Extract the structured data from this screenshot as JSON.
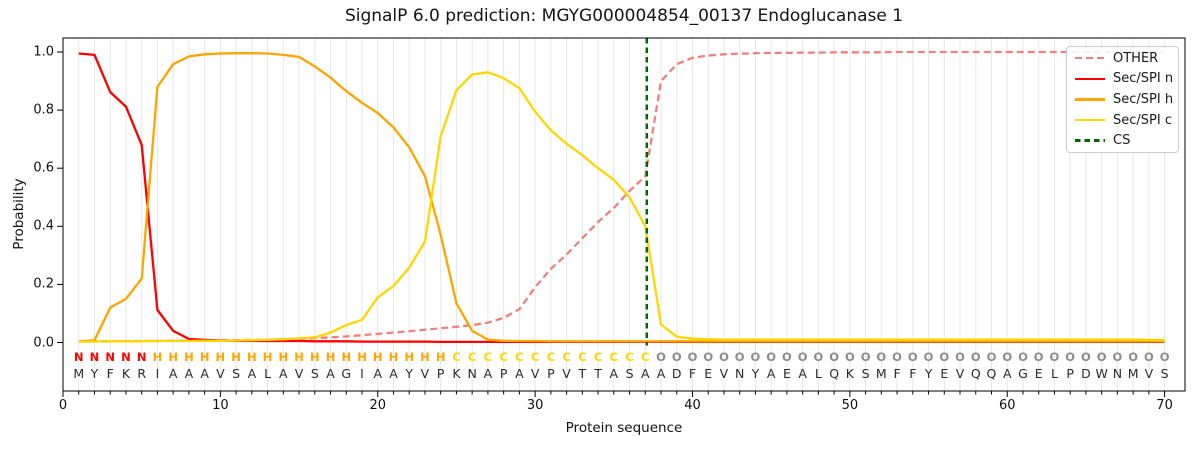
{
  "title": "SignalP 6.0 prediction: MGYG000004854_00137 Endoglucanase 1",
  "axes": {
    "x_label": "Protein sequence",
    "y_label": "Probability",
    "x_ticks": [
      0,
      10,
      20,
      30,
      40,
      50,
      60,
      70
    ],
    "y_ticks": [
      "0.0",
      "0.2",
      "0.4",
      "0.6",
      "0.8",
      "1.0"
    ],
    "xlim": [
      0,
      71.3
    ],
    "ylim": [
      -0.17,
      1.05
    ],
    "grid": "vertical-per-residue"
  },
  "legend": {
    "position": "upper right",
    "items": [
      {
        "label": "OTHER",
        "color": "#f08080",
        "dash": [
          7,
          4
        ]
      },
      {
        "label": "Sec/SPI n",
        "color": "#ff0000",
        "dash": null
      },
      {
        "label": "Sec/SPI h",
        "color": "#ffa500",
        "dash": null
      },
      {
        "label": "Sec/SPI c",
        "color": "#ffd700",
        "dash": null
      },
      {
        "label": "CS",
        "color": "#006400",
        "dash": [
          5.5,
          4
        ]
      }
    ]
  },
  "chart_data": {
    "type": "line",
    "x": [
      1,
      2,
      3,
      4,
      5,
      6,
      7,
      8,
      9,
      10,
      11,
      12,
      13,
      14,
      15,
      16,
      17,
      18,
      19,
      20,
      21,
      22,
      23,
      24,
      25,
      26,
      27,
      28,
      29,
      30,
      31,
      32,
      33,
      34,
      35,
      36,
      37,
      38,
      39,
      40,
      41,
      42,
      43,
      44,
      45,
      46,
      47,
      48,
      49,
      50,
      51,
      52,
      53,
      54,
      55,
      56,
      57,
      58,
      59,
      60,
      61,
      62,
      63,
      64,
      65,
      66,
      67,
      68,
      69,
      70
    ],
    "series": [
      {
        "name": "OTHER",
        "color": "#f08080",
        "dash": [
          7,
          4
        ],
        "values": [
          0.004,
          0.004,
          0.004,
          0.005,
          0.005,
          0.005,
          0.006,
          0.006,
          0.007,
          0.008,
          0.008,
          0.009,
          0.01,
          0.011,
          0.013,
          0.015,
          0.018,
          0.021,
          0.025,
          0.03,
          0.034,
          0.039,
          0.044,
          0.049,
          0.054,
          0.06,
          0.068,
          0.085,
          0.115,
          0.19,
          0.253,
          0.303,
          0.359,
          0.415,
          0.463,
          0.522,
          0.572,
          0.9,
          0.958,
          0.98,
          0.988,
          0.992,
          0.994,
          0.996,
          0.997,
          0.997,
          0.998,
          0.998,
          0.999,
          0.999,
          0.999,
          0.999,
          1.0,
          1.0,
          1.0,
          1.0,
          1.0,
          1.0,
          1.0,
          1.0,
          1.0,
          1.0,
          1.0,
          1.0,
          1.0,
          1.0,
          1.0,
          1.0,
          1.0,
          1.0
        ]
      },
      {
        "name": "Sec/SPI n",
        "color": "#ff0000",
        "dash": null,
        "values": [
          0.995,
          0.99,
          0.862,
          0.812,
          0.68,
          0.112,
          0.04,
          0.012,
          0.009,
          0.007,
          0.006,
          0.006,
          0.005,
          0.005,
          0.005,
          0.004,
          0.004,
          0.004,
          0.003,
          0.003,
          0.003,
          0.003,
          0.003,
          0.002,
          0.002,
          0.002,
          0.002,
          0.002,
          0.002,
          0.002,
          0.002,
          0.002,
          0.002,
          0.002,
          0.002,
          0.002,
          0.002,
          0.002,
          0.002,
          0.002,
          0.002,
          0.002,
          0.002,
          0.002,
          0.002,
          0.002,
          0.002,
          0.002,
          0.002,
          0.002,
          0.002,
          0.002,
          0.002,
          0.002,
          0.002,
          0.002,
          0.002,
          0.002,
          0.002,
          0.002,
          0.002,
          0.002,
          0.002,
          0.002,
          0.002,
          0.002,
          0.002,
          0.002,
          0.002,
          0.002
        ]
      },
      {
        "name": "Sec/SPI h",
        "color": "#ffa500",
        "dash": null,
        "values": [
          0.003,
          0.008,
          0.12,
          0.15,
          0.22,
          0.88,
          0.958,
          0.985,
          0.992,
          0.995,
          0.996,
          0.996,
          0.995,
          0.99,
          0.983,
          0.95,
          0.912,
          0.865,
          0.825,
          0.79,
          0.74,
          0.672,
          0.572,
          0.37,
          0.135,
          0.04,
          0.01,
          0.006,
          0.005,
          0.005,
          0.004,
          0.004,
          0.004,
          0.004,
          0.004,
          0.004,
          0.004,
          0.004,
          0.004,
          0.004,
          0.004,
          0.004,
          0.004,
          0.004,
          0.004,
          0.004,
          0.004,
          0.004,
          0.004,
          0.004,
          0.004,
          0.004,
          0.004,
          0.004,
          0.004,
          0.004,
          0.004,
          0.004,
          0.004,
          0.004,
          0.004,
          0.004,
          0.004,
          0.004,
          0.004,
          0.004,
          0.004,
          0.004,
          0.004,
          0.004
        ]
      },
      {
        "name": "Sec/SPI c",
        "color": "#ffd700",
        "dash": null,
        "values": [
          0.003,
          0.003,
          0.004,
          0.004,
          0.004,
          0.005,
          0.005,
          0.005,
          0.006,
          0.006,
          0.007,
          0.008,
          0.009,
          0.011,
          0.014,
          0.018,
          0.034,
          0.06,
          0.078,
          0.155,
          0.195,
          0.258,
          0.348,
          0.71,
          0.868,
          0.923,
          0.93,
          0.91,
          0.875,
          0.795,
          0.73,
          0.684,
          0.645,
          0.6,
          0.56,
          0.5,
          0.4,
          0.062,
          0.02,
          0.013,
          0.011,
          0.01,
          0.01,
          0.01,
          0.01,
          0.01,
          0.01,
          0.01,
          0.01,
          0.01,
          0.01,
          0.01,
          0.01,
          0.01,
          0.01,
          0.01,
          0.01,
          0.01,
          0.01,
          0.01,
          0.01,
          0.01,
          0.01,
          0.01,
          0.01,
          0.01,
          0.01,
          0.01,
          0.009,
          0.008
        ]
      }
    ],
    "cs": {
      "label": "CS",
      "position": 37.1,
      "color": "#006400",
      "dash": [
        5.5,
        4
      ]
    },
    "sequence": "MYFKRIAAAVSALAVSAGIAAYVPKNAPAVPVTTASAADFEVNYAEALQKSMFFYEVQQAGELPDWNMVS",
    "region_labels": "NNNNNHHHHHHHHHHHHHHHHHHHCCCCCCCCCCCCCOOOOOOOOOOOOOOOOOOOOOOOOOOOOOOOOO",
    "region_colors": {
      "N": "#ff0000",
      "H": "#ffa500",
      "C": "#ffd700",
      "O": "#8c8c8c"
    }
  }
}
